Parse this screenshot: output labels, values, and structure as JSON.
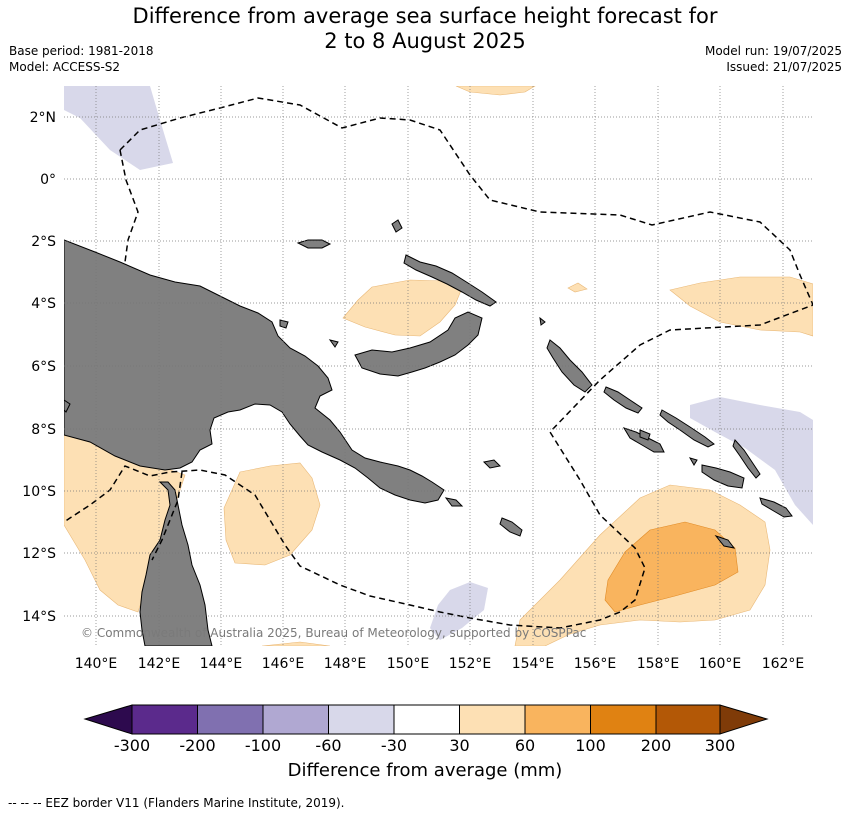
{
  "title": {
    "line1": "Difference from average sea surface height forecast for",
    "line2": "2 to 8 August 2025"
  },
  "meta": {
    "base_period": "Base period: 1981-2018",
    "model": "Model: ACCESS-S2",
    "model_run": "Model run: 19/07/2025",
    "issued": "Issued: 21/07/2025"
  },
  "map": {
    "lat_labels": [
      "2°N",
      "0°",
      "2°S",
      "4°S",
      "6°S",
      "8°S",
      "10°S",
      "12°S",
      "14°S"
    ],
    "lon_labels": [
      "140°E",
      "142°E",
      "144°E",
      "146°E",
      "148°E",
      "150°E",
      "152°E",
      "154°E",
      "156°E",
      "158°E",
      "160°E",
      "162°E"
    ],
    "copyright": "© Commonwealth of Australia 2025, Bureau of Meteorology, supported by COSPPac",
    "land_color": "#808080",
    "ocean_color": "#ffffff",
    "grid": true,
    "eez_style": "dashed"
  },
  "colorbar": {
    "title": "Difference from average (mm)",
    "tick_labels": [
      "-300",
      "-200",
      "-100",
      "-60",
      "-30",
      "30",
      "60",
      "100",
      "200",
      "300"
    ],
    "colors": [
      "#2d0a4e",
      "#5b2a8c",
      "#8070b0",
      "#b0a8d2",
      "#d8d8ea",
      "#ffffff",
      "#fde0b4",
      "#f9b45e",
      "#e08212",
      "#b35806",
      "#7f3b08"
    ]
  },
  "footer": {
    "legend_text": "--  --  -- EEZ border V11 (Flanders Marine Institute, 2019)."
  }
}
